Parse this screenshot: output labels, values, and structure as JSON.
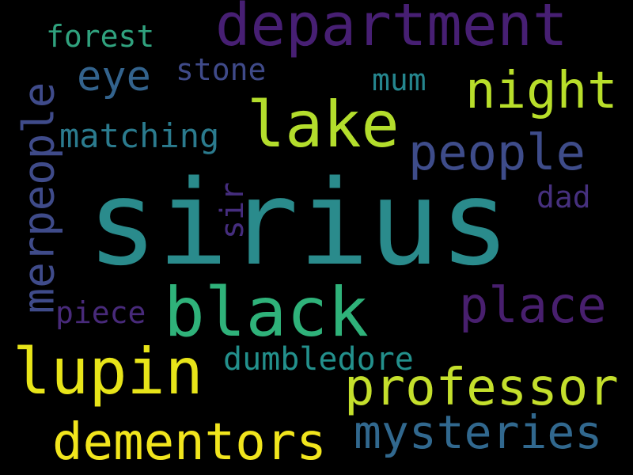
{
  "words": {
    "sirius": {
      "text": "sirius",
      "color": "#2a8b8c"
    },
    "department": {
      "text": "department",
      "color": "#471f73"
    },
    "lake": {
      "text": "lake",
      "color": "#b3dd2c"
    },
    "black": {
      "text": "black",
      "color": "#2fb27a"
    },
    "lupin": {
      "text": "lupin",
      "color": "#e7e419"
    },
    "merpeople": {
      "text": "merpeople",
      "color": "#3f4b8a"
    },
    "night": {
      "text": "night",
      "color": "#b8de2a"
    },
    "people": {
      "text": "people",
      "color": "#3e4c8a"
    },
    "place": {
      "text": "place",
      "color": "#481f6e"
    },
    "professor": {
      "text": "professor",
      "color": "#c4df2c"
    },
    "mysteries": {
      "text": "mysteries",
      "color": "#31688e"
    },
    "dementors": {
      "text": "dementors",
      "color": "#f1e51d"
    },
    "eye": {
      "text": "eye",
      "color": "#33638d"
    },
    "forest": {
      "text": "forest",
      "color": "#30a27e"
    },
    "stone": {
      "text": "stone",
      "color": "#3f4a89"
    },
    "mum": {
      "text": "mum",
      "color": "#25868e"
    },
    "matching": {
      "text": "matching",
      "color": "#2b7b8e"
    },
    "sir": {
      "text": "sir",
      "color": "#452d7e"
    },
    "dad": {
      "text": "dad",
      "color": "#46307e"
    },
    "piece": {
      "text": "piece",
      "color": "#482a7a"
    },
    "dumbledore": {
      "text": "dumbledore",
      "color": "#23908c"
    }
  }
}
